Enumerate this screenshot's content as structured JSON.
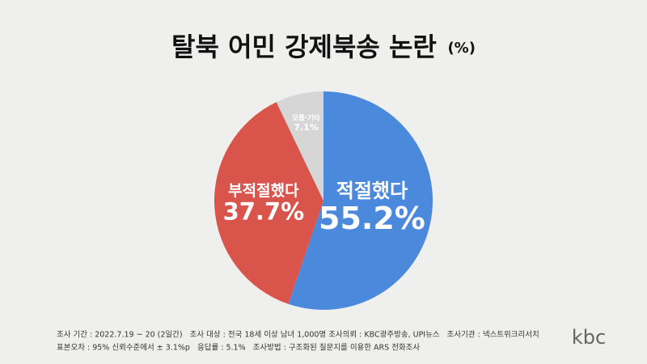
{
  "chart_data": {
    "type": "pie",
    "title": "탈북 어민 강제북송 논란",
    "unit": "(%)",
    "categories": [
      "적절했다",
      "부적절했다",
      "모름·기타"
    ],
    "values": [
      55.2,
      37.7,
      7.1
    ],
    "value_labels": [
      "55.2%",
      "37.7%",
      "7.1%"
    ],
    "colors": [
      "#4a89dc",
      "#d9544b",
      "#d6d6d6"
    ],
    "notes": [
      "조사 기간 : 2022.7.19 ~ 20 (2일간)   조사 대상 : 전국 18세 이상 남녀 1,000명 조사의뢰 : KBC광주방송, UPI뉴스   조사기관 : 넥스트위크리서치",
      "표본오차 : 95% 신뢰수준에서 ± 3.1%p   응답률 : 5.1%   조사방법 : 구조화된 질문지를 이용한 ARS 전화조사"
    ],
    "logo": "kbc"
  }
}
